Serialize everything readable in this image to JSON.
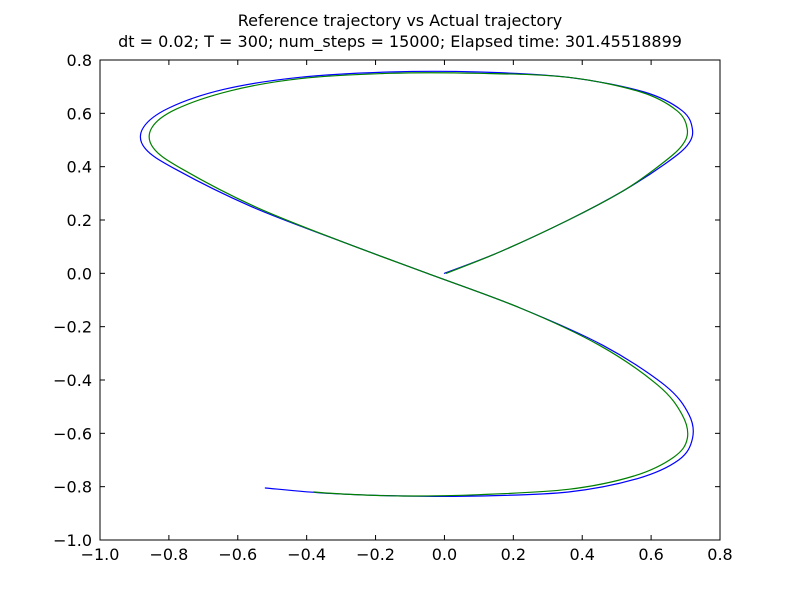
{
  "figure": {
    "title_line1": "Reference trajectory vs Actual trajectory",
    "title_line2": "dt = 0.02; T = 300; num_steps = 15000; Elapsed time: 301.45518899"
  },
  "chart_data": {
    "type": "line",
    "title": "Reference trajectory vs Actual trajectory\ndt = 0.02; T = 300; num_steps = 15000; Elapsed time: 301.45518899",
    "xlabel": "",
    "ylabel": "",
    "xlim": [
      -1.0,
      0.8
    ],
    "ylim": [
      -1.0,
      0.8
    ],
    "grid": false,
    "x_ticks": [
      -1.0,
      -0.8,
      -0.6,
      -0.4,
      -0.2,
      0.0,
      0.2,
      0.4,
      0.6,
      0.8
    ],
    "x_tick_labels": [
      "−1.0",
      "−0.8",
      "−0.6",
      "−0.4",
      "−0.2",
      "0.0",
      "0.2",
      "0.4",
      "0.6",
      "0.8"
    ],
    "y_ticks": [
      -1.0,
      -0.8,
      -0.6,
      -0.4,
      -0.2,
      0.0,
      0.2,
      0.4,
      0.6,
      0.8
    ],
    "y_tick_labels": [
      "−1.0",
      "−0.8",
      "−0.6",
      "−0.4",
      "−0.2",
      "0.0",
      "0.2",
      "0.4",
      "0.6",
      "0.8"
    ],
    "series": [
      {
        "color": "#0000ff",
        "x": [
          0.0,
          0.16,
          0.36,
          0.52,
          0.64,
          0.705,
          0.72,
          0.69,
          0.58,
          0.36,
          0.1,
          -0.16,
          -0.42,
          -0.64,
          -0.8,
          -0.875,
          -0.87,
          -0.78,
          -0.56,
          -0.3,
          -0.05,
          0.22,
          0.46,
          0.64,
          0.71,
          0.72,
          0.68,
          0.56,
          0.36,
          0.1,
          -0.12,
          -0.34,
          -0.52
        ],
        "y": [
          0.0,
          0.08,
          0.2,
          0.31,
          0.41,
          0.48,
          0.54,
          0.61,
          0.68,
          0.735,
          0.755,
          0.755,
          0.735,
          0.69,
          0.62,
          0.545,
          0.47,
          0.39,
          0.25,
          0.12,
          0.0,
          -0.13,
          -0.27,
          -0.42,
          -0.53,
          -0.62,
          -0.7,
          -0.77,
          -0.82,
          -0.835,
          -0.835,
          -0.825,
          -0.805
        ]
      },
      {
        "color": "#008000",
        "x": [
          0.005,
          0.16,
          0.36,
          0.52,
          0.63,
          0.69,
          0.705,
          0.675,
          0.57,
          0.36,
          0.1,
          -0.16,
          -0.42,
          -0.62,
          -0.78,
          -0.85,
          -0.845,
          -0.76,
          -0.55,
          -0.3,
          -0.05,
          0.22,
          0.45,
          0.62,
          0.69,
          0.705,
          0.665,
          0.55,
          0.36,
          0.1,
          -0.12,
          -0.29,
          -0.38
        ],
        "y": [
          0.0,
          0.08,
          0.2,
          0.31,
          0.41,
          0.48,
          0.54,
          0.61,
          0.68,
          0.735,
          0.75,
          0.75,
          0.73,
          0.685,
          0.615,
          0.545,
          0.47,
          0.39,
          0.25,
          0.12,
          0.0,
          -0.13,
          -0.27,
          -0.42,
          -0.53,
          -0.62,
          -0.69,
          -0.76,
          -0.81,
          -0.83,
          -0.835,
          -0.828,
          -0.82
        ]
      }
    ]
  }
}
